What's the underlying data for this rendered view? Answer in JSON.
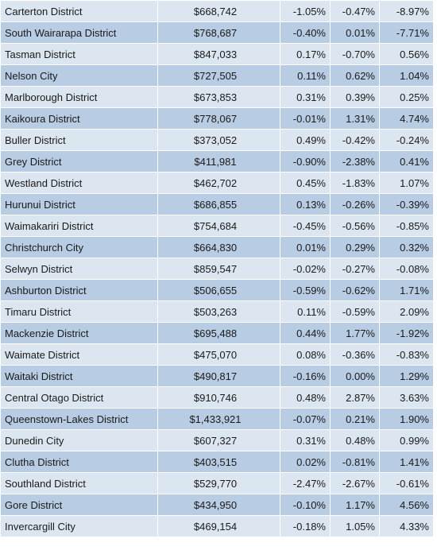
{
  "table": {
    "rows": [
      [
        "Carterton District",
        "$668,742",
        "-1.05%",
        "-0.47%",
        "-8.97%"
      ],
      [
        "South Wairarapa District",
        "$768,687",
        "-0.40%",
        "0.01%",
        "-7.71%"
      ],
      [
        "Tasman District",
        "$847,033",
        "0.17%",
        "-0.70%",
        "0.56%"
      ],
      [
        "Nelson City",
        "$727,505",
        "0.11%",
        "0.62%",
        "1.04%"
      ],
      [
        "Marlborough District",
        "$673,853",
        "0.31%",
        "0.39%",
        "0.25%"
      ],
      [
        "Kaikoura District",
        "$778,067",
        "-0.01%",
        "1.31%",
        "4.74%"
      ],
      [
        "Buller District",
        "$373,052",
        "0.49%",
        "-0.42%",
        "-0.24%"
      ],
      [
        "Grey District",
        "$411,981",
        "-0.90%",
        "-2.38%",
        "0.41%"
      ],
      [
        "Westland District",
        "$462,702",
        "0.45%",
        "-1.83%",
        "1.07%"
      ],
      [
        "Hurunui District",
        "$686,855",
        "0.13%",
        "-0.26%",
        "-0.39%"
      ],
      [
        "Waimakariri District",
        "$754,684",
        "-0.45%",
        "-0.56%",
        "-0.85%"
      ],
      [
        "Christchurch City",
        "$664,830",
        "0.01%",
        "0.29%",
        "0.32%"
      ],
      [
        "Selwyn District",
        "$859,547",
        "-0.02%",
        "-0.27%",
        "-0.08%"
      ],
      [
        "Ashburton District",
        "$506,655",
        "-0.59%",
        "-0.62%",
        "1.71%"
      ],
      [
        "Timaru District",
        "$503,263",
        "0.11%",
        "-0.59%",
        "2.09%"
      ],
      [
        "Mackenzie District",
        "$695,488",
        "0.44%",
        "1.77%",
        "-1.92%"
      ],
      [
        "Waimate District",
        "$475,070",
        "0.08%",
        "-0.36%",
        "-0.83%"
      ],
      [
        "Waitaki District",
        "$490,817",
        "-0.16%",
        "0.00%",
        "1.29%"
      ],
      [
        "Central Otago District",
        "$910,746",
        "0.48%",
        "2.87%",
        "3.63%"
      ],
      [
        "Queenstown-Lakes District",
        "$1,433,921",
        "-0.07%",
        "0.21%",
        "1.90%"
      ],
      [
        "Dunedin City",
        "$607,327",
        "0.31%",
        "0.48%",
        "0.99%"
      ],
      [
        "Clutha District",
        "$403,515",
        "0.02%",
        "-0.81%",
        "1.41%"
      ],
      [
        "Southland District",
        "$529,770",
        "-2.47%",
        "-2.67%",
        "-0.61%"
      ],
      [
        "Gore District",
        "$434,950",
        "-0.10%",
        "1.17%",
        "4.56%"
      ],
      [
        "Invercargill City",
        "$469,154",
        "-0.18%",
        "1.05%",
        "4.33%"
      ]
    ]
  }
}
